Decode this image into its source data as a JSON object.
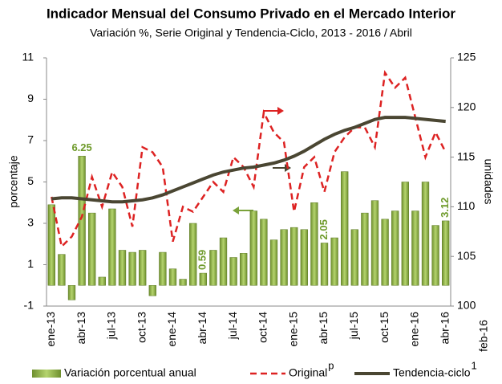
{
  "chart_data": {
    "type": "bar",
    "title": "Indicador Mensual del Consumo Privado en el Mercado Interior",
    "subtitle": "Variación %, Serie Original y Tendencia-Ciclo, 2013 - 2016 / Abril",
    "y_label": "porcentaje",
    "y2_label": "unidades",
    "annotation": "feb-16",
    "categories": [
      "ene-13",
      null,
      null,
      "abr-13",
      null,
      null,
      "jul-13",
      null,
      null,
      "oct-13",
      null,
      null,
      "ene-14",
      null,
      null,
      "abr-14",
      null,
      null,
      "jul-14",
      null,
      null,
      "oct-14",
      null,
      null,
      "ene-15",
      null,
      null,
      "abr-15",
      null,
      null,
      "jul-15",
      null,
      null,
      "oct-15",
      null,
      null,
      "ene-16",
      null,
      null,
      "abr-16"
    ],
    "series": [
      {
        "name": "Variación porcentual anual",
        "type": "bar",
        "color": "#9bbb59",
        "values": [
          3.9,
          1.5,
          -0.7,
          6.25,
          3.5,
          0.4,
          3.7,
          1.7,
          1.6,
          1.7,
          -0.5,
          1.6,
          0.8,
          0.3,
          3.0,
          0.59,
          1.7,
          2.3,
          1.35,
          1.55,
          3.6,
          3.2,
          2.2,
          2.7,
          2.8,
          2.7,
          4.0,
          2.05,
          2.3,
          5.5,
          2.7,
          3.5,
          4.1,
          3.2,
          3.6,
          5.0,
          3.6,
          5.0,
          2.9,
          3.12
        ],
        "value_labels": [
          null,
          null,
          null,
          "6.25",
          null,
          null,
          null,
          null,
          null,
          null,
          null,
          null,
          null,
          null,
          null,
          "0.59",
          null,
          null,
          null,
          null,
          null,
          null,
          null,
          null,
          null,
          null,
          null,
          "2.05",
          null,
          null,
          null,
          null,
          null,
          null,
          null,
          null,
          null,
          null,
          null,
          "3.12"
        ]
      },
      {
        "name": "Original",
        "note": "p",
        "type": "line",
        "axis": "y2",
        "color": "#dd2222",
        "dashed": true,
        "values": [
          111,
          106,
          107,
          109,
          113,
          110,
          113.5,
          112,
          108,
          116,
          115.5,
          114,
          106.5,
          110,
          109.5,
          111,
          112.5,
          111.5,
          115,
          114,
          112,
          119.5,
          117.5,
          116.5,
          109.5,
          114,
          115,
          111.5,
          115.5,
          117,
          118,
          118,
          116,
          123.5,
          122,
          123,
          119,
          115,
          117.5,
          115.5
        ]
      },
      {
        "name": "Tendencia-ciclo",
        "note": "1",
        "type": "line",
        "axis": "y2",
        "color": "#4a4632",
        "dashed": false,
        "values": [
          110.8,
          110.9,
          110.9,
          110.8,
          110.7,
          110.6,
          110.5,
          110.5,
          110.6,
          110.7,
          110.9,
          111.2,
          111.6,
          112.0,
          112.4,
          112.8,
          113.2,
          113.5,
          113.7,
          113.9,
          114.0,
          114.2,
          114.4,
          114.7,
          115.1,
          115.6,
          116.2,
          116.8,
          117.3,
          117.7,
          118.0,
          118.4,
          118.8,
          119.0,
          119.0,
          119.0,
          118.9,
          118.8,
          118.7,
          118.6
        ]
      }
    ],
    "ylim": [
      -1,
      11
    ],
    "yticks": [
      -1,
      1,
      3,
      5,
      7,
      9,
      11
    ],
    "y2lim": [
      100,
      125
    ],
    "y2ticks": [
      100,
      105,
      110,
      115,
      120,
      125
    ]
  }
}
